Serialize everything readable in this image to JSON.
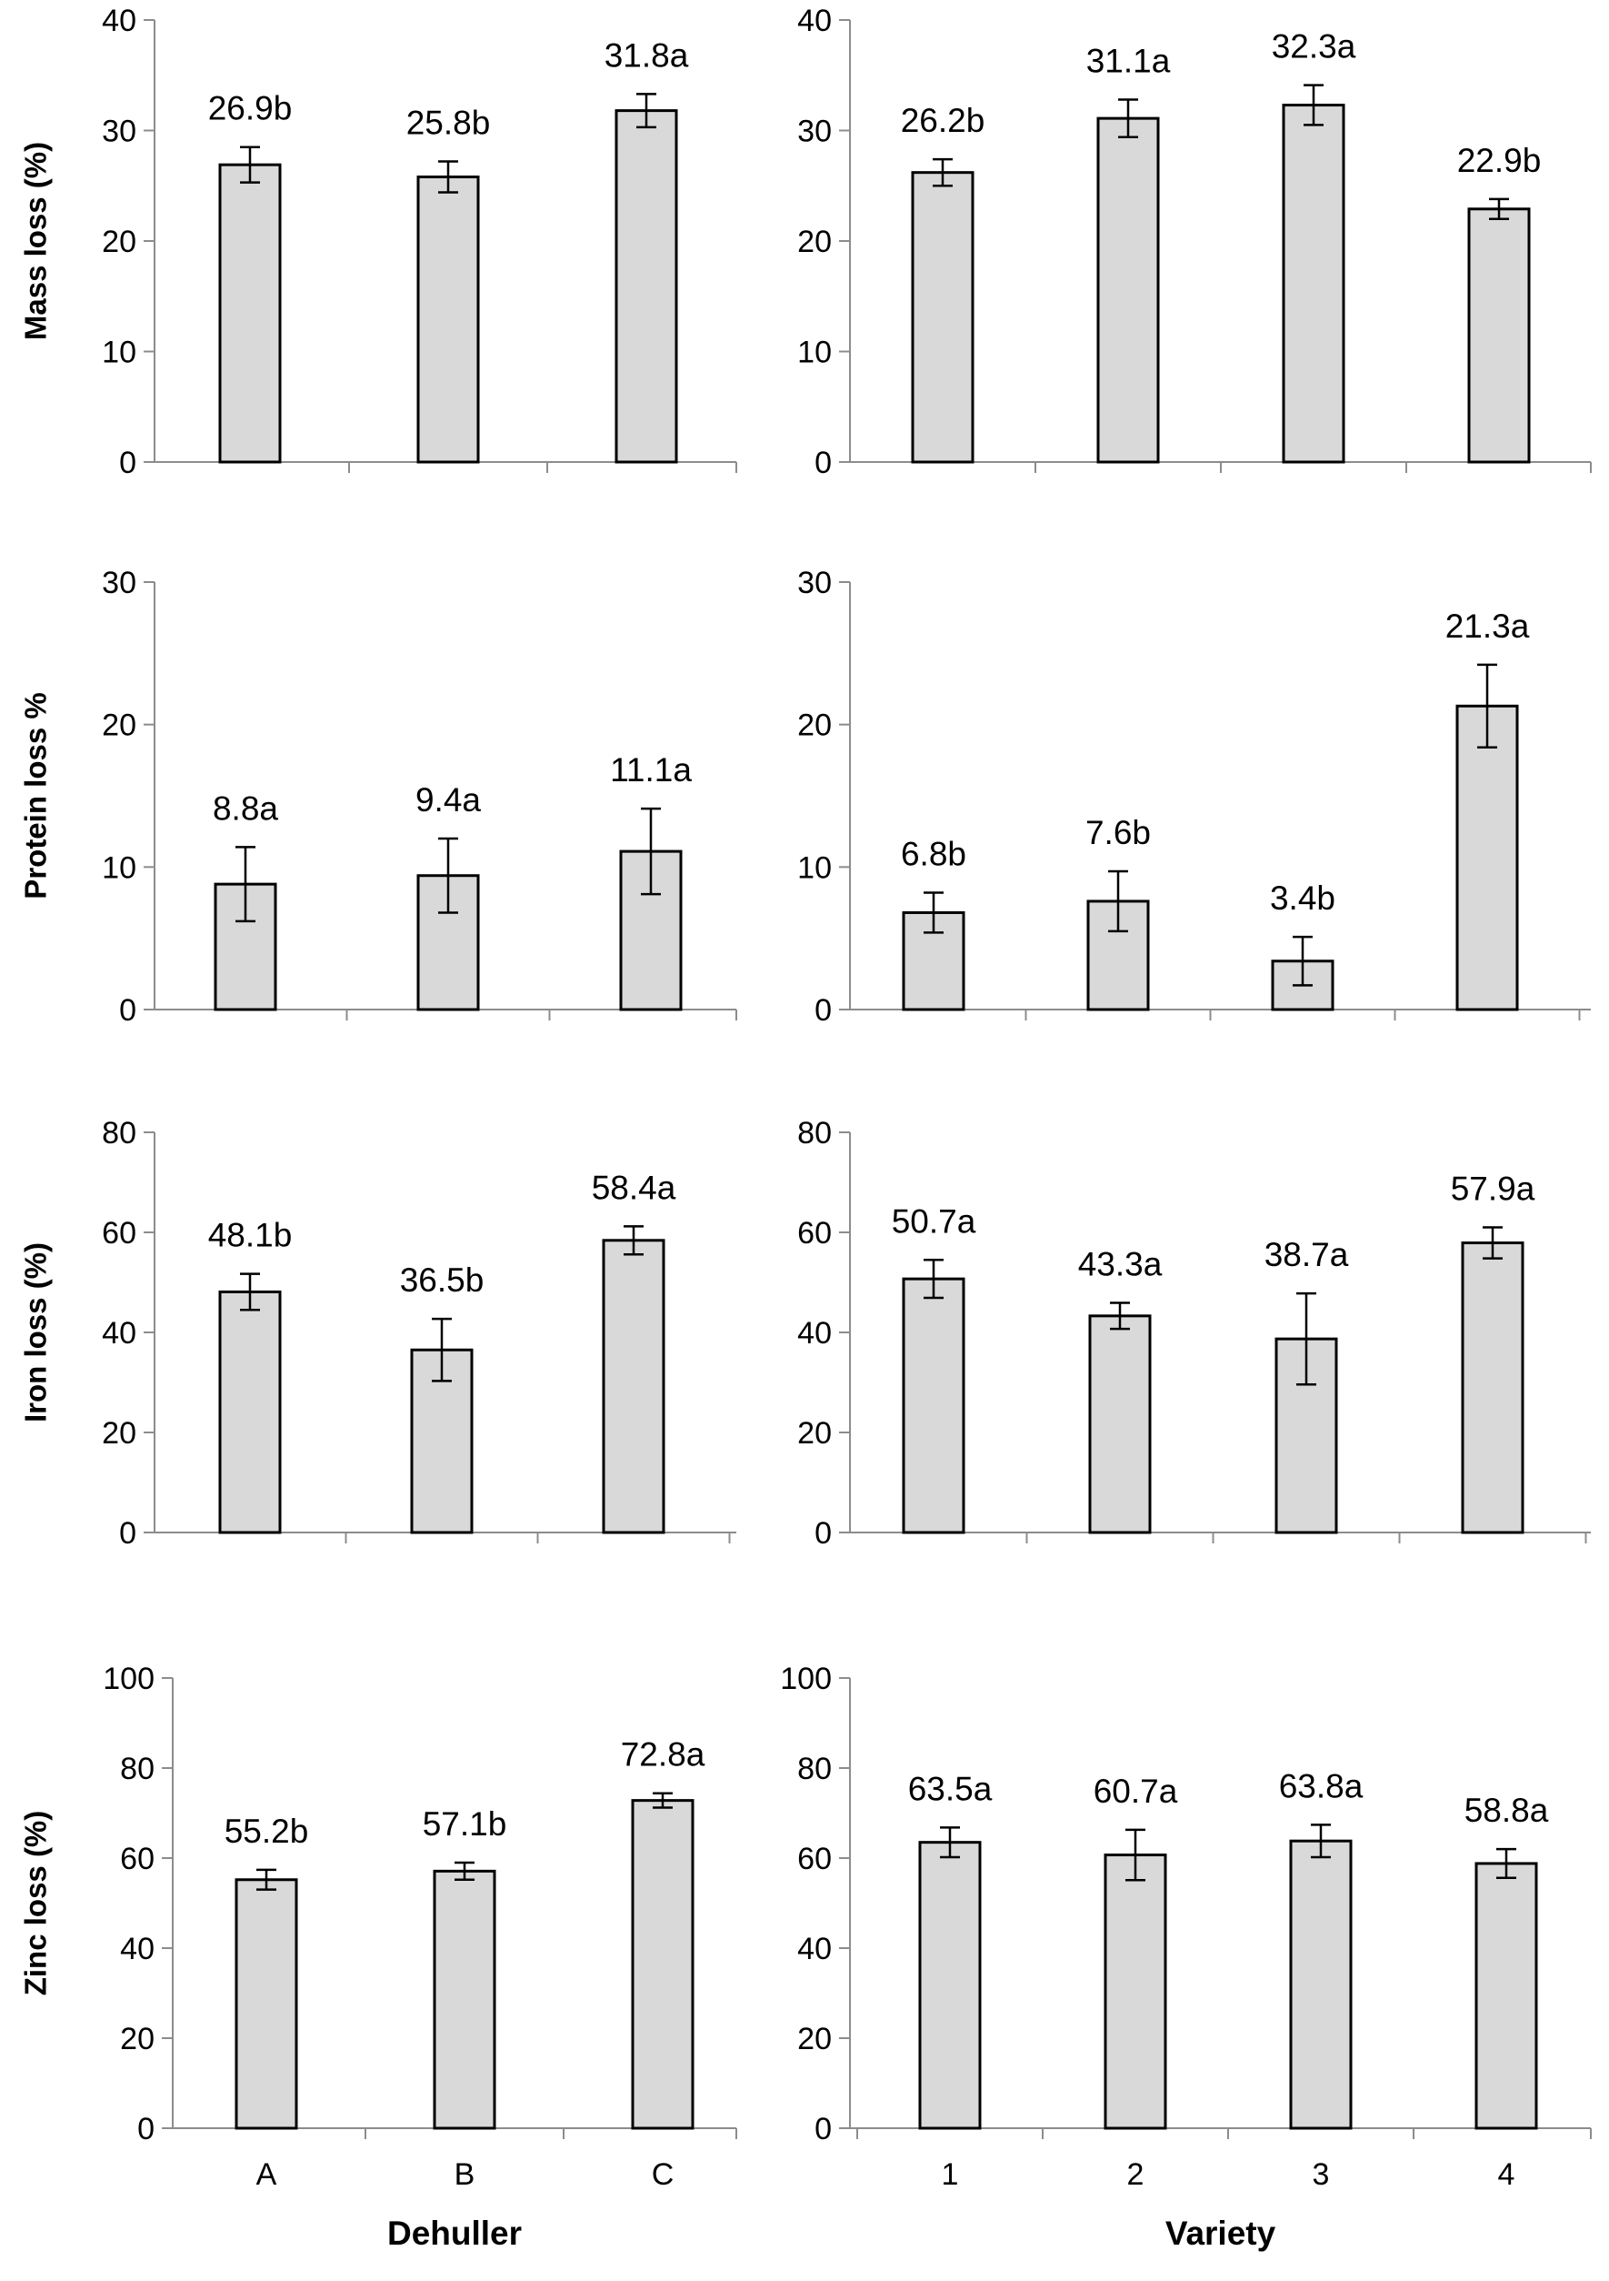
{
  "chart_data": [
    {
      "type": "bar",
      "panel": "mass-loss-dehuller",
      "categories": [
        "A",
        "B",
        "C"
      ],
      "values": [
        26.9,
        25.8,
        31.8
      ],
      "errors": [
        1.6,
        1.4,
        1.5
      ],
      "labels": [
        "26.9b",
        "25.8b",
        "31.8a"
      ],
      "ylabel": "Mass loss (%)",
      "xlabel": "",
      "ylim": [
        0,
        40
      ],
      "yticks": [
        0,
        10,
        20,
        30,
        40
      ],
      "show_categories": false,
      "bar_color": "#d9d9d9",
      "grid": false
    },
    {
      "type": "bar",
      "panel": "mass-loss-variety",
      "categories": [
        "1",
        "2",
        "3",
        "4"
      ],
      "values": [
        26.2,
        31.1,
        32.3,
        22.9
      ],
      "errors": [
        1.2,
        1.7,
        1.8,
        0.9
      ],
      "labels": [
        "26.2b",
        "31.1a",
        "32.3a",
        "22.9b"
      ],
      "ylabel": "",
      "xlabel": "",
      "ylim": [
        0,
        40
      ],
      "yticks": [
        0,
        10,
        20,
        30,
        40
      ],
      "show_categories": false,
      "bar_color": "#d9d9d9",
      "grid": false
    },
    {
      "type": "bar",
      "panel": "protein-loss-dehuller",
      "categories": [
        "A",
        "B",
        "C"
      ],
      "values": [
        8.8,
        9.4,
        11.1
      ],
      "errors": [
        2.6,
        2.6,
        3.0
      ],
      "labels": [
        "8.8a",
        "9.4a",
        "11.1a"
      ],
      "ylabel": "Protein loss %",
      "xlabel": "",
      "ylim": [
        0,
        30
      ],
      "yticks": [
        0,
        10,
        20,
        30
      ],
      "show_categories": false,
      "bar_color": "#d9d9d9",
      "grid": false
    },
    {
      "type": "bar",
      "panel": "protein-loss-variety",
      "categories": [
        "1",
        "2",
        "3",
        "4"
      ],
      "values": [
        6.8,
        7.6,
        3.4,
        21.3
      ],
      "errors": [
        1.4,
        2.1,
        1.7,
        2.9
      ],
      "labels": [
        "6.8b",
        "7.6b",
        "3.4b",
        "21.3a"
      ],
      "ylabel": "",
      "xlabel": "",
      "ylim": [
        0,
        30
      ],
      "yticks": [
        0,
        10,
        20,
        30
      ],
      "show_categories": false,
      "bar_color": "#d9d9d9",
      "grid": false
    },
    {
      "type": "bar",
      "panel": "iron-loss-dehuller",
      "categories": [
        "A",
        "B",
        "C"
      ],
      "values": [
        48.1,
        36.5,
        58.4
      ],
      "errors": [
        3.6,
        6.2,
        2.8
      ],
      "labels": [
        "48.1b",
        "36.5b",
        "58.4a"
      ],
      "ylabel": "Iron loss (%)",
      "xlabel": "",
      "ylim": [
        0,
        80
      ],
      "yticks": [
        0,
        20,
        40,
        60,
        80
      ],
      "show_categories": false,
      "bar_color": "#d9d9d9",
      "grid": false
    },
    {
      "type": "bar",
      "panel": "iron-loss-variety",
      "categories": [
        "1",
        "2",
        "3",
        "4"
      ],
      "values": [
        50.7,
        43.3,
        38.7,
        57.9
      ],
      "errors": [
        3.8,
        2.6,
        9.1,
        3.1
      ],
      "labels": [
        "50.7a",
        "43.3a",
        "38.7a",
        "57.9a"
      ],
      "ylabel": "",
      "xlabel": "",
      "ylim": [
        0,
        80
      ],
      "yticks": [
        0,
        20,
        40,
        60,
        80
      ],
      "show_categories": false,
      "bar_color": "#d9d9d9",
      "grid": false
    },
    {
      "type": "bar",
      "panel": "zinc-loss-dehuller",
      "categories": [
        "A",
        "B",
        "C"
      ],
      "values": [
        55.2,
        57.1,
        72.8
      ],
      "errors": [
        2.2,
        1.9,
        1.6
      ],
      "labels": [
        "55.2b",
        "57.1b",
        "72.8a"
      ],
      "ylabel": "Zinc loss (%)",
      "xlabel": "Dehuller",
      "ylim": [
        0,
        100
      ],
      "yticks": [
        0,
        20,
        40,
        60,
        80,
        100
      ],
      "show_categories": true,
      "bar_color": "#d9d9d9",
      "grid": false
    },
    {
      "type": "bar",
      "panel": "zinc-loss-variety",
      "categories": [
        "1",
        "2",
        "3",
        "4"
      ],
      "values": [
        63.5,
        60.7,
        63.8,
        58.8
      ],
      "errors": [
        3.3,
        5.6,
        3.6,
        3.2
      ],
      "labels": [
        "63.5a",
        "60.7a",
        "63.8a",
        "58.8a"
      ],
      "ylabel": "",
      "xlabel": "Variety",
      "ylim": [
        0,
        100
      ],
      "yticks": [
        0,
        20,
        40,
        60,
        80,
        100
      ],
      "show_categories": true,
      "bar_color": "#d9d9d9",
      "grid": false
    }
  ]
}
